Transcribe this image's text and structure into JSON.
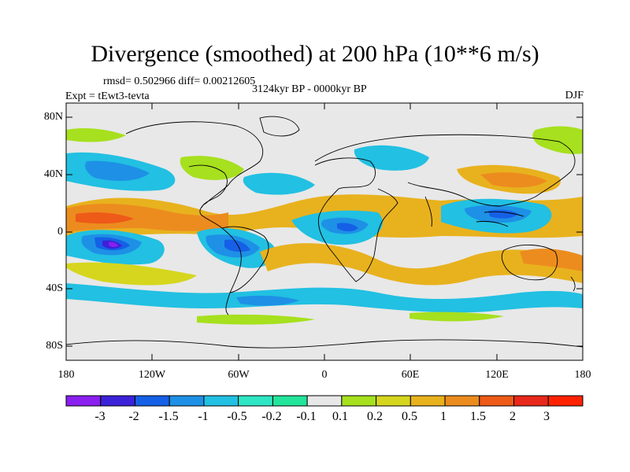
{
  "title": "Divergence (smoothed) at 200 hPa (10**6 m/s)",
  "stats": "rmsd= 0.502966 diff= 0.00212605",
  "period": "3124kyr BP - 0000kyr BP",
  "experiment": "Expt = tEwt3-tevta",
  "season": "DJF",
  "lat_labels": [
    "80N",
    "40N",
    "0",
    "40S",
    "80S"
  ],
  "lon_labels": [
    "180",
    "120W",
    "60W",
    "0",
    "60E",
    "120E",
    "180"
  ],
  "colorbar": {
    "labels": [
      "-3",
      "-2",
      "-1.5",
      "-1",
      "-0.5",
      "-0.2",
      "-0.1",
      "0.1",
      "0.2",
      "0.5",
      "1",
      "1.5",
      "2",
      "3"
    ],
    "colors": [
      "#8a1ff0",
      "#3c22d8",
      "#1560e6",
      "#1e90e6",
      "#22c0e2",
      "#2ee6c4",
      "#22e49a",
      "#e8e8e8",
      "#a6e01e",
      "#d6d61e",
      "#e8b21e",
      "#ec8c1e",
      "#ee5a18",
      "#e8281a",
      "#ff2200"
    ]
  }
}
